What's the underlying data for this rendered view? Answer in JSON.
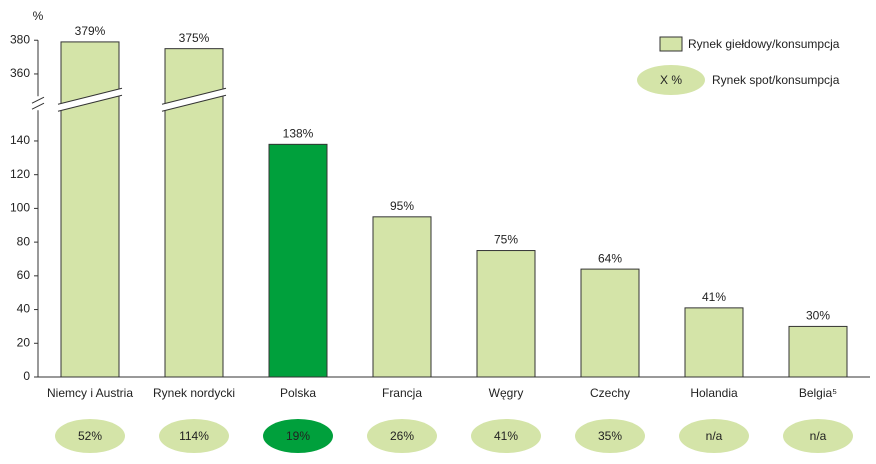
{
  "chart_data": {
    "type": "bar",
    "y_unit": "%",
    "categories": [
      "Niemcy i Austria",
      "Rynek nordycki",
      "Polska",
      "Francja",
      "Węgry",
      "Czechy",
      "Holandia",
      "Belgia⁵"
    ],
    "series": [
      {
        "name": "Rynek giełdowy/konsumpcja",
        "colors": [
          "#d4e4a8",
          "#d4e4a8",
          "#00a03c",
          "#d4e4a8",
          "#d4e4a8",
          "#d4e4a8",
          "#d4e4a8",
          "#d4e4a8"
        ],
        "values": [
          379,
          375,
          138,
          95,
          75,
          64,
          41,
          30
        ],
        "value_labels": [
          "379%",
          "375%",
          "138%",
          "95%",
          "75%",
          "64%",
          "41%",
          "30%"
        ]
      },
      {
        "name": "Rynek spot/konsumpcja",
        "legend_symbol_label": "X %",
        "colors": [
          "#d4e4a8",
          "#d4e4a8",
          "#00a03c",
          "#d4e4a8",
          "#d4e4a8",
          "#d4e4a8",
          "#d4e4a8",
          "#d4e4a8"
        ],
        "values": [
          52,
          114,
          19,
          26,
          41,
          35,
          null,
          null
        ],
        "value_labels": [
          "52%",
          "114%",
          "19%",
          "26%",
          "41%",
          "35%",
          "n/a",
          "n/a"
        ]
      }
    ],
    "ylim": [
      0,
      380
    ],
    "axis_break": [
      160,
      345
    ],
    "yticks": [
      0,
      20,
      40,
      60,
      80,
      100,
      120,
      140,
      360,
      380
    ]
  }
}
